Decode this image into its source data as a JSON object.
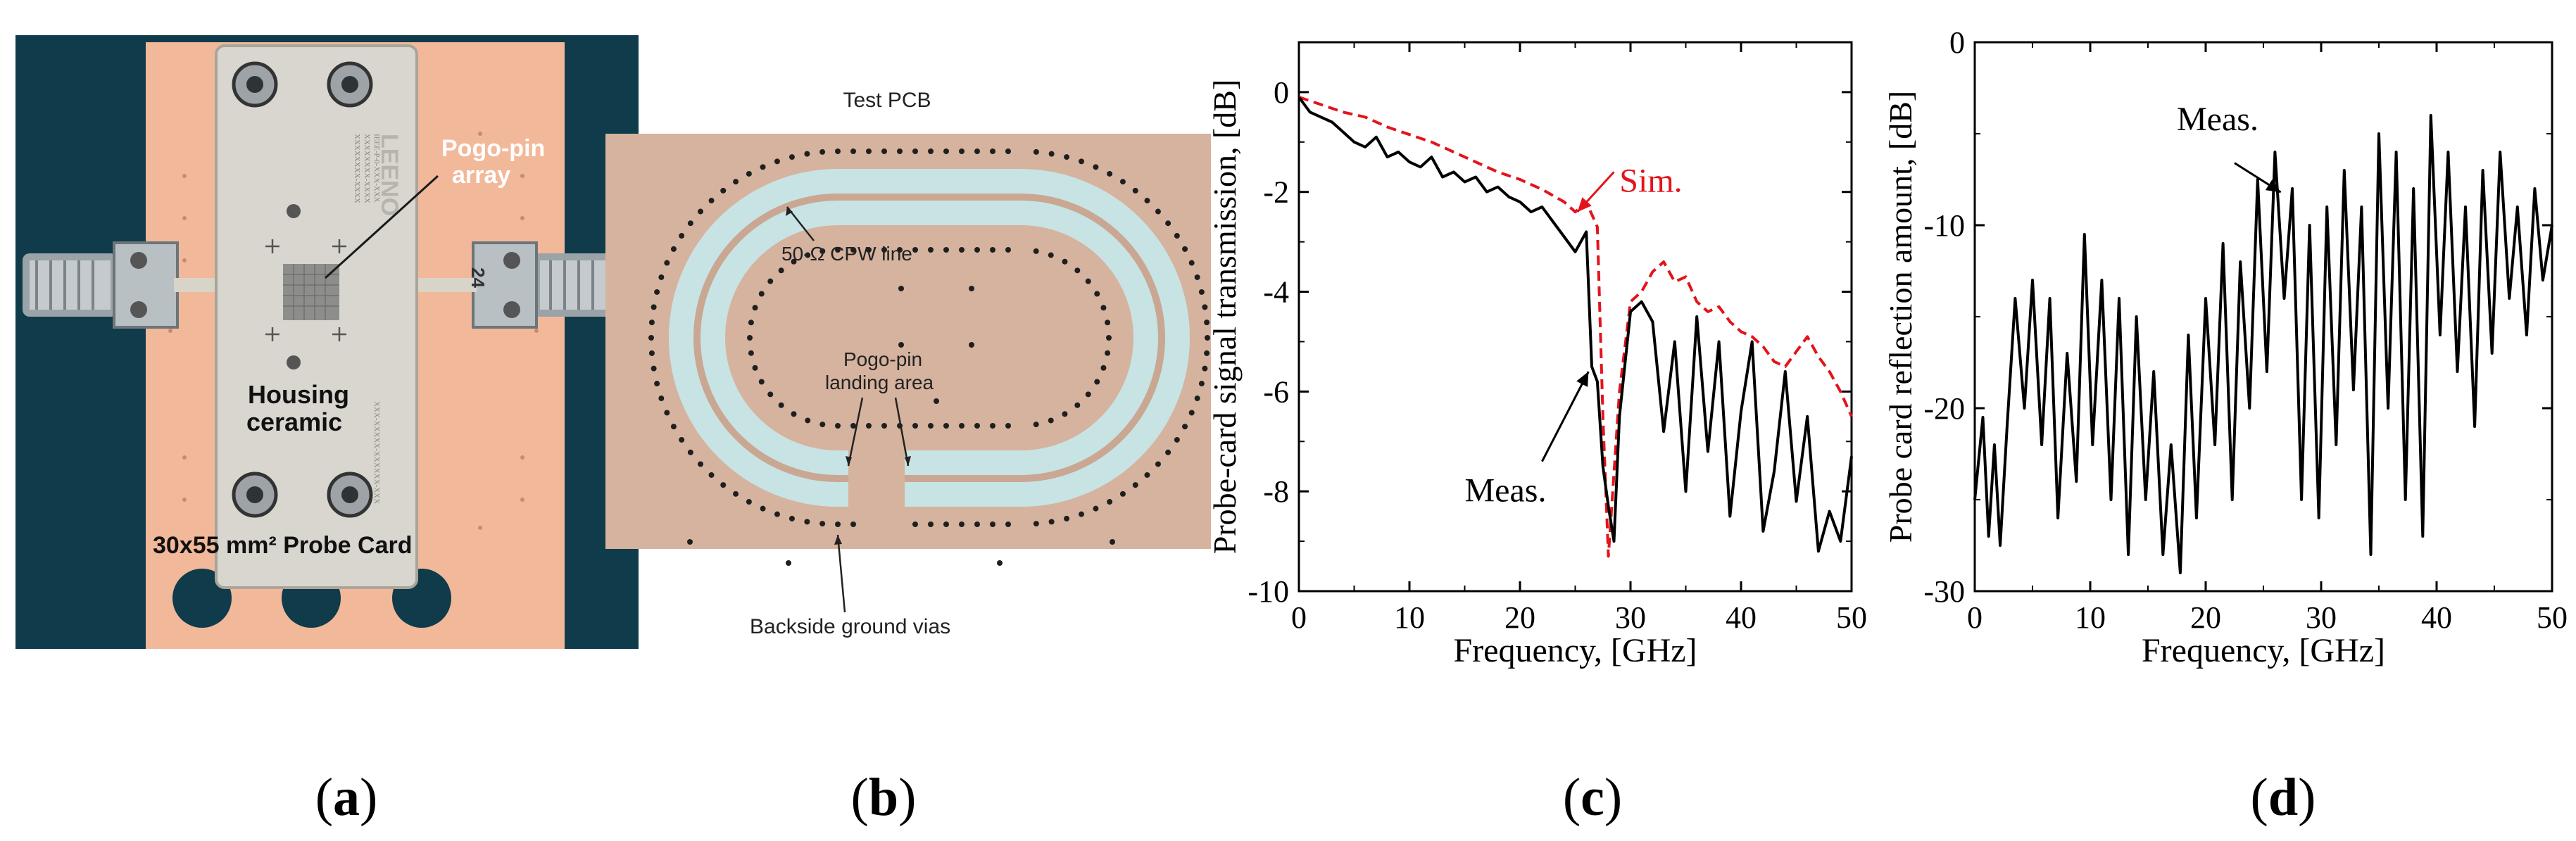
{
  "figure": {
    "panels": [
      {
        "id": "a",
        "caption": "(a)"
      },
      {
        "id": "b",
        "caption": "(b)"
      },
      {
        "id": "c",
        "caption": "(c)"
      },
      {
        "id": "d",
        "caption": "(d)"
      }
    ]
  },
  "panel_a": {
    "brand": "LEENO",
    "pogo_label_1": "Pogo-pin",
    "pogo_label_2": "array",
    "housing_label_1": "Housing",
    "housing_label_2": "ceramic",
    "probe_card_label": "30x55 mm² Probe Card",
    "connector_label": "24"
  },
  "panel_b": {
    "title": "Test PCB",
    "cpw_label": "50-Ω CPW line",
    "landing_label_1": "Pogo-pin",
    "landing_label_2": "landing area",
    "vias_label": "Backside ground vias"
  },
  "panel_c": {
    "annot_sim": "Sim.",
    "annot_meas": "Meas."
  },
  "panel_d": {
    "annot_meas": "Meas."
  },
  "colors": {
    "sim": "#e3141b",
    "meas": "#000000",
    "pcb": "#d8b4a0",
    "board": "#f2b89a",
    "bg_dark": "#0f3b4a"
  },
  "chart_data": [
    {
      "type": "line",
      "title": "",
      "xlabel": "Frequency, [GHz]",
      "ylabel": "Probe-card signal transmission, [dB]",
      "xlim": [
        0,
        50
      ],
      "ylim": [
        -10,
        1
      ],
      "xticks": [
        0,
        10,
        20,
        30,
        40,
        50
      ],
      "xtick_labels": [
        "0",
        "10",
        "20",
        "30",
        "40",
        "50"
      ],
      "yticks": [
        0,
        -2,
        -4,
        -6,
        -8,
        -10
      ],
      "ytick_labels": [
        "0",
        "-2",
        "-4",
        "-6",
        "-8",
        "-10"
      ],
      "series": [
        {
          "name": "Sim.",
          "style": "dashed",
          "color": "#e3141b",
          "x": [
            0,
            2,
            4,
            6,
            8,
            10,
            12,
            14,
            16,
            18,
            20,
            22,
            24,
            25,
            26,
            27,
            27.5,
            28,
            29,
            30,
            31,
            32,
            33,
            34,
            35,
            36,
            37,
            38,
            39,
            40,
            41,
            42,
            43,
            44,
            45,
            46,
            47,
            48,
            49,
            50
          ],
          "y": [
            -0.1,
            -0.25,
            -0.4,
            -0.5,
            -0.7,
            -0.85,
            -1.0,
            -1.2,
            -1.4,
            -1.6,
            -1.75,
            -1.95,
            -2.2,
            -2.4,
            -2.2,
            -2.7,
            -6.5,
            -9.3,
            -6.0,
            -4.2,
            -4.0,
            -3.6,
            -3.4,
            -3.8,
            -3.7,
            -4.2,
            -4.4,
            -4.3,
            -4.6,
            -4.8,
            -4.9,
            -5.1,
            -5.4,
            -5.5,
            -5.2,
            -4.9,
            -5.3,
            -5.6,
            -6.0,
            -6.5
          ]
        },
        {
          "name": "Meas.",
          "style": "solid",
          "color": "#000000",
          "x": [
            0,
            1,
            2,
            3,
            4,
            5,
            6,
            7,
            8,
            9,
            10,
            11,
            12,
            13,
            14,
            15,
            16,
            17,
            18,
            19,
            20,
            21,
            22,
            23,
            24,
            25,
            26,
            26.5,
            27,
            27.5,
            28,
            28.5,
            29,
            30,
            31,
            32,
            33,
            34,
            35,
            36,
            37,
            38,
            39,
            40,
            41,
            42,
            43,
            44,
            45,
            46,
            47,
            48,
            49,
            50
          ],
          "y": [
            -0.1,
            -0.4,
            -0.5,
            -0.6,
            -0.8,
            -1.0,
            -1.1,
            -0.9,
            -1.3,
            -1.2,
            -1.4,
            -1.5,
            -1.3,
            -1.7,
            -1.6,
            -1.8,
            -1.7,
            -2.0,
            -1.9,
            -2.1,
            -2.2,
            -2.4,
            -2.3,
            -2.6,
            -2.9,
            -3.2,
            -2.8,
            -5.5,
            -5.8,
            -7.5,
            -8.3,
            -9.0,
            -6.5,
            -4.4,
            -4.2,
            -4.6,
            -6.8,
            -5.0,
            -8.0,
            -4.5,
            -7.2,
            -5.0,
            -8.5,
            -6.4,
            -5.0,
            -8.8,
            -7.6,
            -5.6,
            -8.2,
            -6.5,
            -9.2,
            -8.4,
            -9.0,
            -7.3
          ]
        }
      ],
      "annotations": [
        "Sim.",
        "Meas."
      ]
    },
    {
      "type": "line",
      "title": "",
      "xlabel": "Frequency, [GHz]",
      "ylabel": "Probe card reflection amount, [dB]",
      "xlim": [
        0,
        50
      ],
      "ylim": [
        -30,
        0
      ],
      "xticks": [
        0,
        10,
        20,
        30,
        40,
        50
      ],
      "xtick_labels": [
        "0",
        "10",
        "20",
        "30",
        "40",
        "50"
      ],
      "yticks": [
        0,
        -10,
        -20,
        -30
      ],
      "ytick_labels": [
        "0",
        "-10",
        "-20",
        "-30"
      ],
      "series": [
        {
          "name": "Meas.",
          "style": "solid",
          "color": "#000000",
          "x": [
            0,
            0.7,
            1.2,
            1.7,
            2.2,
            2.8,
            3.5,
            4.3,
            5.0,
            5.8,
            6.5,
            7.2,
            8.0,
            8.8,
            9.5,
            10.2,
            11.0,
            11.8,
            12.5,
            13.3,
            14.0,
            14.8,
            15.5,
            16.3,
            17.0,
            17.8,
            18.5,
            19.2,
            20.0,
            20.8,
            21.5,
            22.3,
            23.0,
            23.8,
            24.5,
            25.3,
            26.0,
            26.8,
            27.5,
            28.3,
            29.0,
            29.8,
            30.5,
            31.3,
            32.0,
            32.8,
            33.5,
            34.3,
            35.0,
            35.8,
            36.5,
            37.3,
            38.0,
            38.8,
            39.5,
            40.3,
            41.0,
            41.8,
            42.5,
            43.3,
            44.0,
            44.8,
            45.5,
            46.3,
            47.0,
            47.8,
            48.5,
            49.2,
            50.0
          ],
          "y": [
            -25,
            -20.5,
            -27,
            -22,
            -27.5,
            -21,
            -14,
            -20,
            -13,
            -22,
            -14,
            -26,
            -17,
            -24,
            -10.5,
            -22,
            -13,
            -25,
            -14,
            -28,
            -15,
            -25,
            -18,
            -28,
            -22,
            -29,
            -16,
            -26,
            -14,
            -22,
            -11,
            -25,
            -12,
            -20,
            -7.5,
            -18,
            -6,
            -14,
            -8,
            -25,
            -10,
            -26,
            -9,
            -22,
            -7,
            -19,
            -9,
            -28,
            -5,
            -20,
            -6,
            -25,
            -8,
            -27,
            -4,
            -16,
            -6,
            -18,
            -9,
            -21,
            -7,
            -17,
            -6,
            -14,
            -9,
            -16,
            -8,
            -13,
            -10
          ]
        }
      ],
      "annotations": [
        "Meas."
      ]
    }
  ]
}
